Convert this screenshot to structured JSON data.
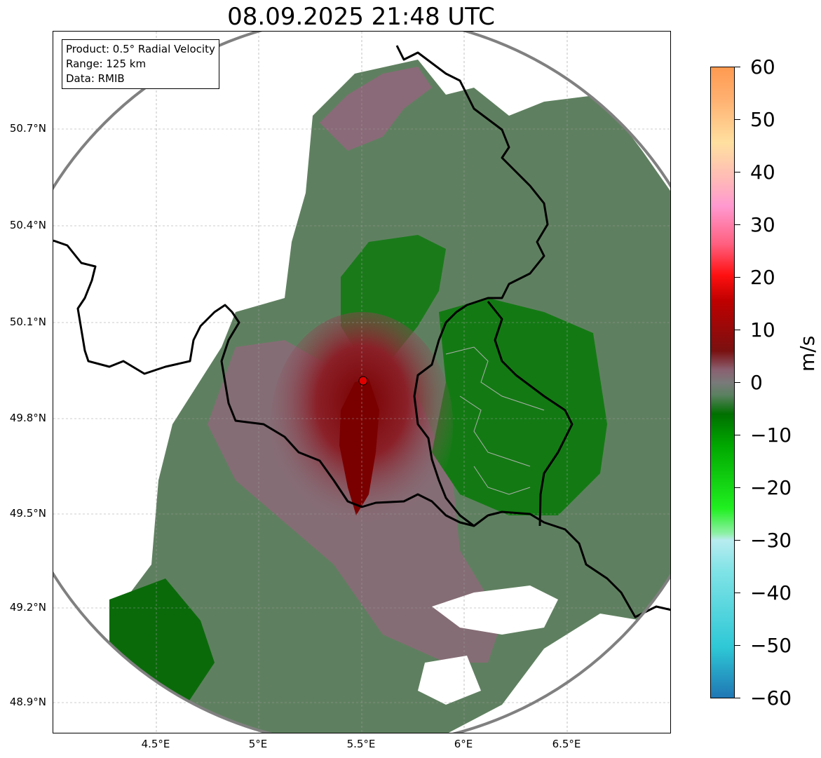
{
  "title": "08.09.2025 21:48 UTC",
  "info": {
    "product": "Product: 0.5° Radial Velocity",
    "range": "Range: 125 km",
    "source": "Data: RMIB"
  },
  "axes": {
    "lat_labels": [
      "50.7°N",
      "50.4°N",
      "50.1°N",
      "49.8°N",
      "49.5°N",
      "49.2°N",
      "48.9°N"
    ],
    "lon_labels": [
      "4.5°E",
      "5°E",
      "5.5°E",
      "6°E",
      "6.5°E"
    ]
  },
  "colorbar": {
    "unit": "m/s",
    "tick_labels": [
      "60",
      "50",
      "40",
      "30",
      "20",
      "10",
      "0",
      "−10",
      "−20",
      "−30",
      "−40",
      "−50",
      "−60"
    ],
    "range": [
      -60,
      60
    ]
  },
  "radar_site": {
    "lon": 5.5,
    "lat": 49.91
  },
  "colors": {
    "ring": "#808080",
    "border": "#000000",
    "site": "#e00000"
  }
}
